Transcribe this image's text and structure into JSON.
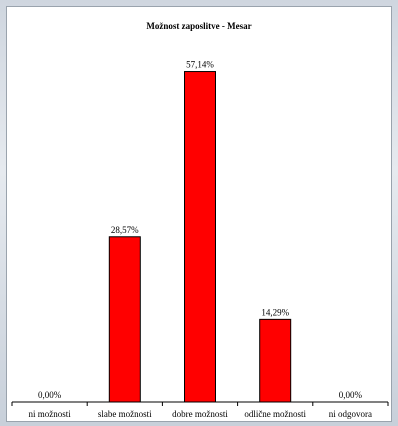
{
  "chart_data": {
    "type": "bar",
    "title": "Možnost zaposlitve - Mesar",
    "xlabel": "",
    "ylabel": "",
    "categories": [
      "ni možnosti",
      "slabe možnosti",
      "dobre možnosti",
      "odlične možnosti",
      "ni odgovora"
    ],
    "values": [
      0.0,
      28.57,
      57.14,
      14.29,
      0.0
    ],
    "data_labels": [
      "0,00%",
      "28,57%",
      "57,14%",
      "14,29%",
      "0,00%"
    ],
    "ylim": [
      0,
      60
    ],
    "grid": false,
    "legend": "none",
    "colors": {
      "bar": "#ff0000",
      "bar_stroke": "#000000",
      "axis": "#000000"
    }
  }
}
